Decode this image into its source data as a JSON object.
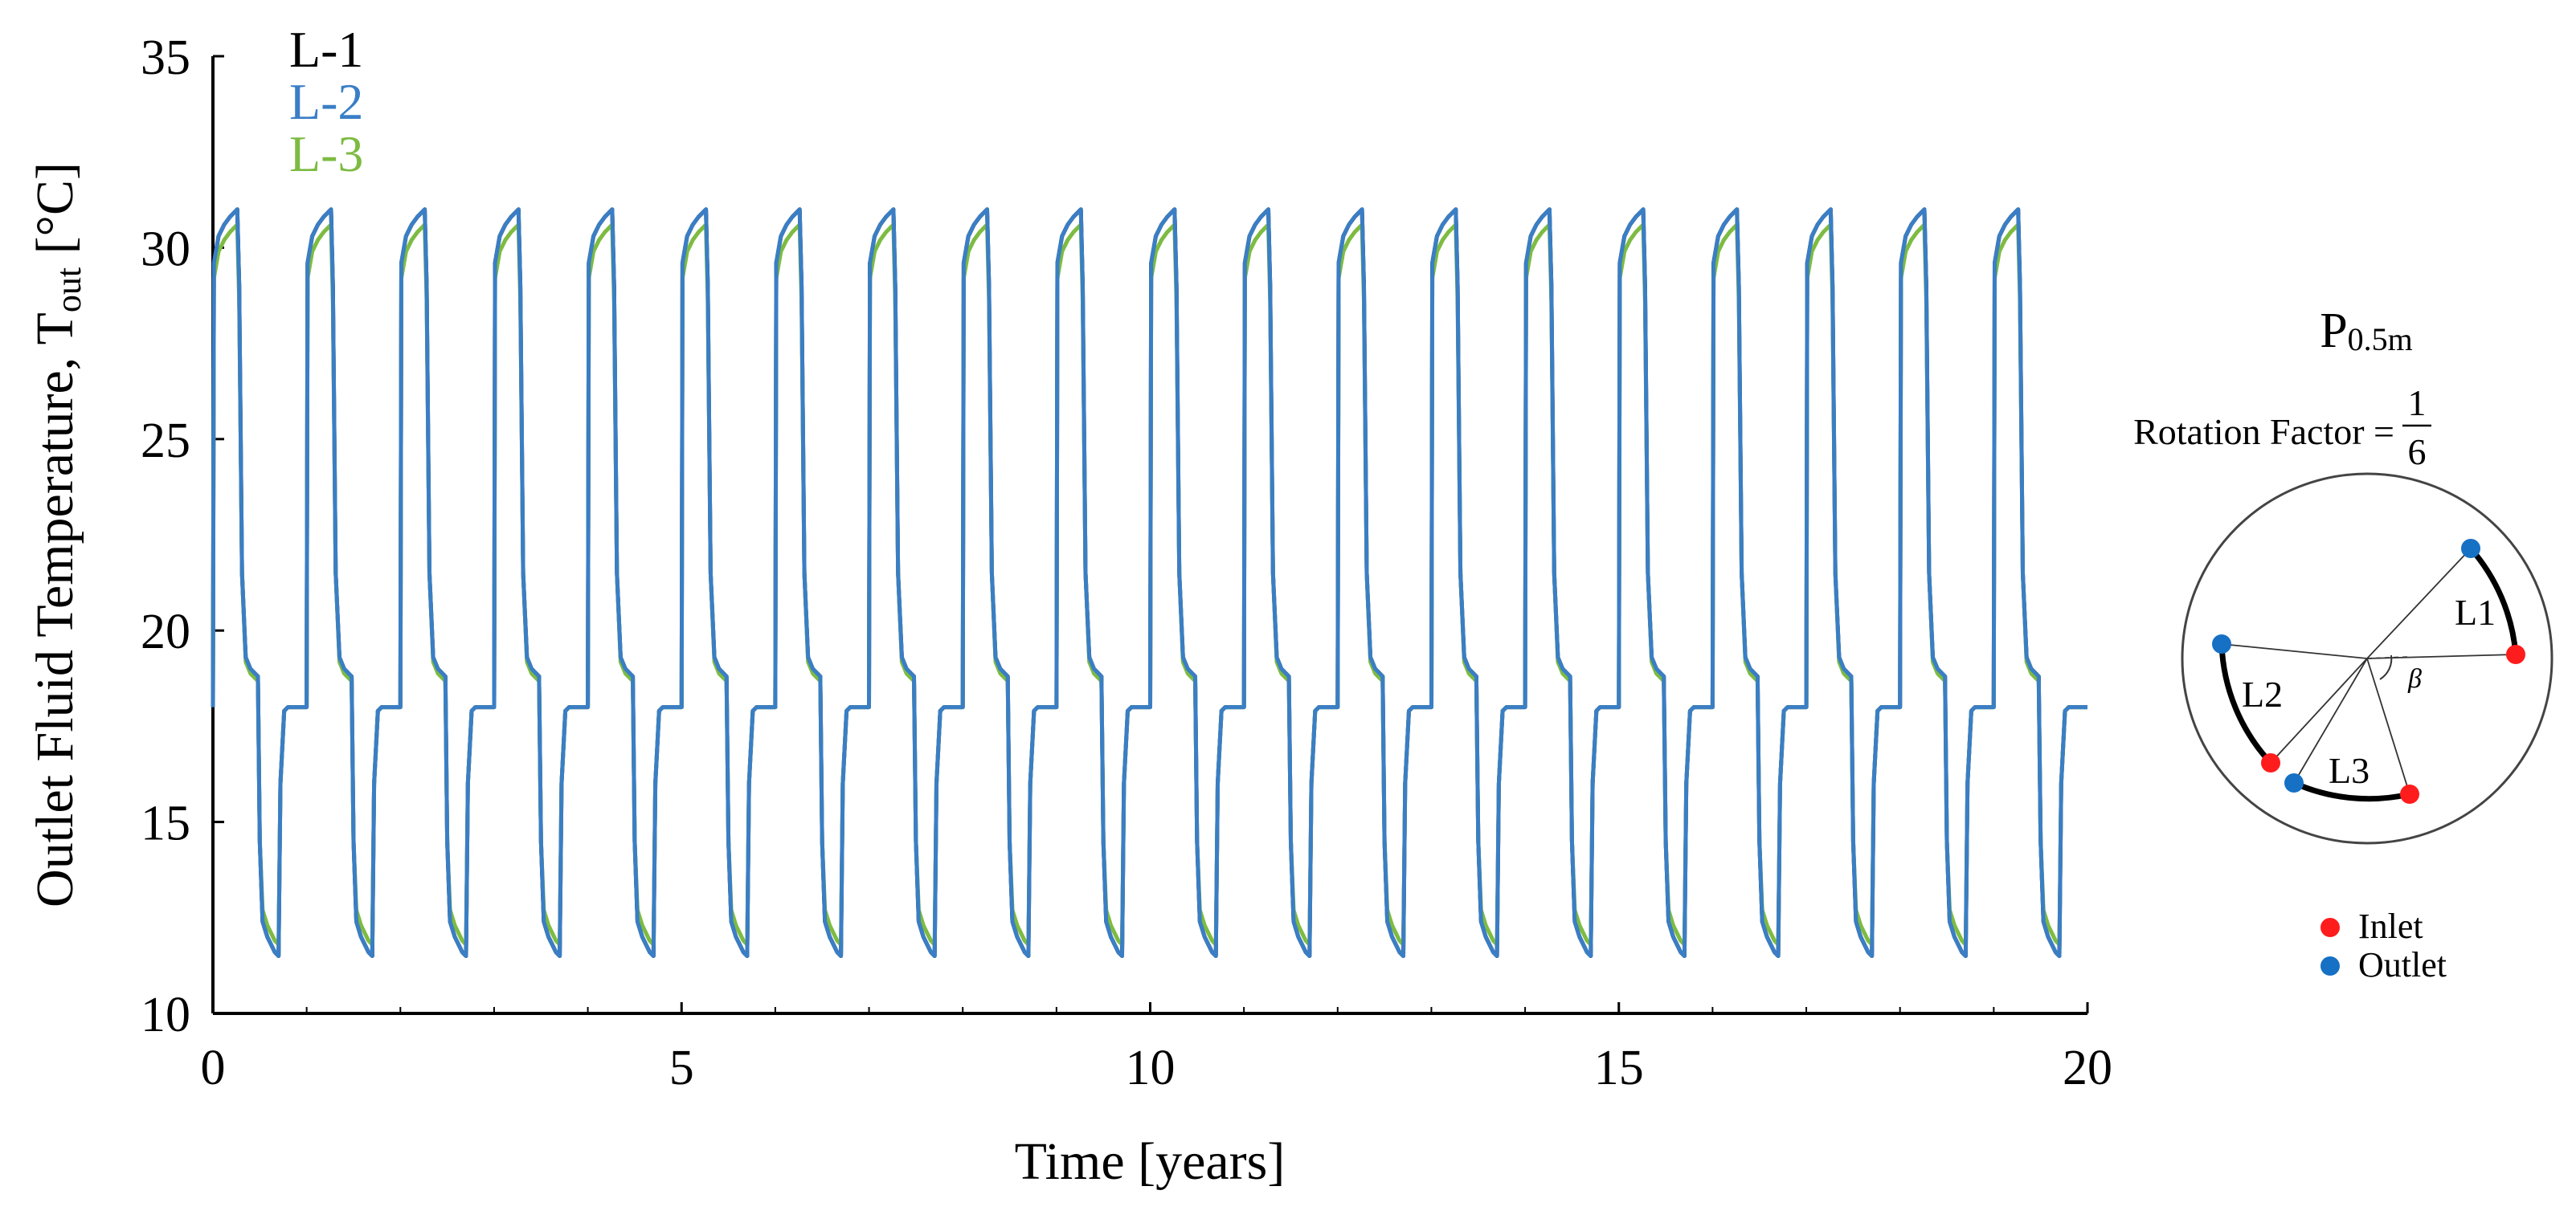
{
  "chart_data": {
    "type": "line",
    "xlabel": "Time [years]",
    "ylabel": {
      "main": "Outlet Fluid Temperature, T",
      "subscript": "out",
      "unit": " [°C]"
    },
    "xlim": [
      0,
      20
    ],
    "ylim": [
      10,
      35
    ],
    "x_ticks": [
      "0",
      "5",
      "10",
      "15",
      "20"
    ],
    "y_ticks": [
      "10",
      "15",
      "20",
      "25",
      "30",
      "35"
    ],
    "grid": false,
    "legend_position": "top-left",
    "cycle_pattern": {
      "period_years": 1,
      "cycles": 20,
      "profile": [
        [
          0.0,
          18.0
        ],
        [
          0.01,
          29.6
        ],
        [
          0.06,
          30.3
        ],
        [
          0.12,
          30.6
        ],
        [
          0.18,
          30.8
        ],
        [
          0.26,
          31.0
        ],
        [
          0.28,
          29.0
        ],
        [
          0.31,
          21.5
        ],
        [
          0.35,
          19.3
        ],
        [
          0.4,
          19.0
        ],
        [
          0.48,
          18.8
        ],
        [
          0.5,
          14.5
        ],
        [
          0.53,
          12.4
        ],
        [
          0.58,
          12.0
        ],
        [
          0.66,
          11.6
        ],
        [
          0.7,
          11.5
        ],
        [
          0.72,
          16.0
        ],
        [
          0.76,
          17.9
        ],
        [
          0.8,
          18.0
        ],
        [
          1.0,
          18.0
        ]
      ],
      "final_segment_end": 20.0
    },
    "series": [
      {
        "name": "L-1",
        "color": "#000000",
        "peak_offset": 0.0,
        "trough_offset": 0.0
      },
      {
        "name": "L-2",
        "color": "#3a7ec5",
        "peak_offset": 0.0,
        "trough_offset": 0.0
      },
      {
        "name": "L-3",
        "color": "#7dbb42",
        "peak_offset": -0.4,
        "trough_offset": 0.3
      }
    ]
  },
  "inset": {
    "title_main": "P",
    "title_sub": "0.5m",
    "rotation_label": "Rotation Factor =",
    "fraction_num": "1",
    "fraction_den": "6",
    "segments": [
      "L1",
      "L2",
      "L3"
    ],
    "angle_label": "β",
    "legend": [
      {
        "label": "Inlet",
        "color": "#ff1c1c"
      },
      {
        "label": "Outlet",
        "color": "#1670c4"
      }
    ]
  }
}
